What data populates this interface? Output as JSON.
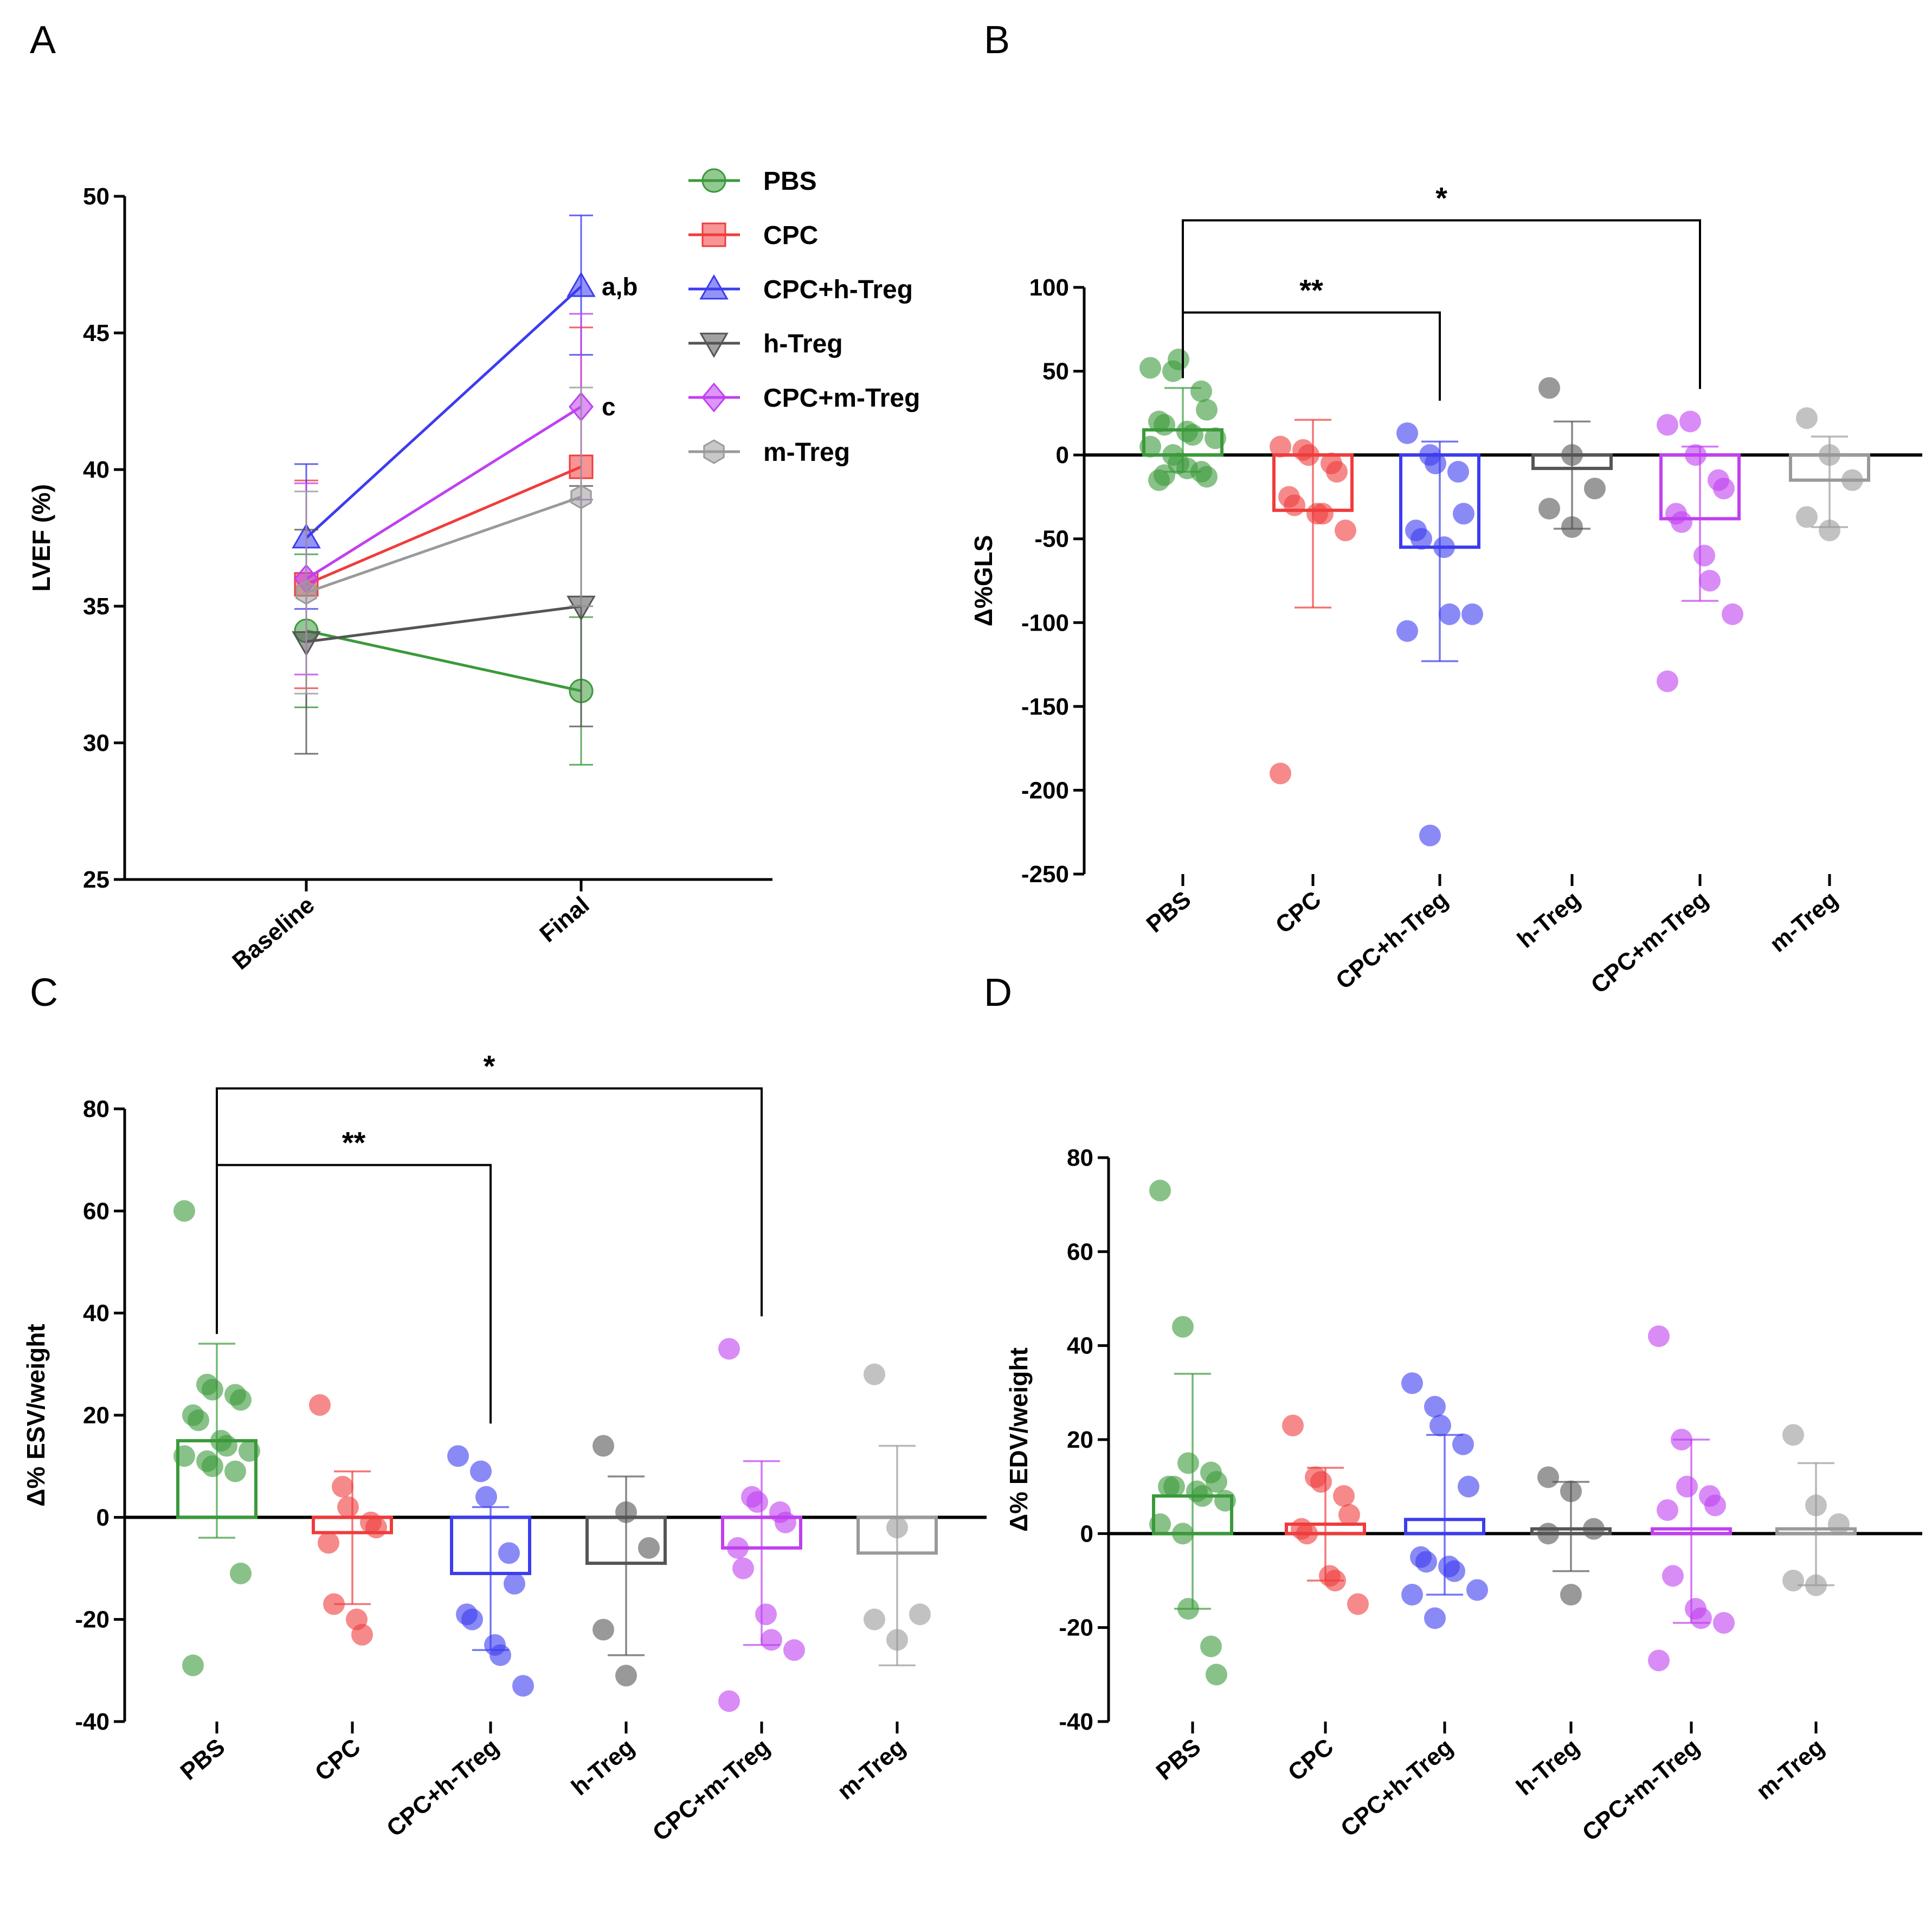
{
  "colors": {
    "PBS": "#3a9a3a",
    "CPC": "#f03c3c",
    "CPC+h-Treg": "#3c3cf0",
    "h-Treg": "#555555",
    "CPC+m-Treg": "#c040f0",
    "m-Treg": "#9a9a9a"
  },
  "chart_data": [
    {
      "panel": "A",
      "type": "line",
      "title": "",
      "xlabel": "",
      "ylabel": "LVEF (%)",
      "categories": [
        "Baseline",
        "Final"
      ],
      "ylim": [
        25,
        50
      ],
      "yticks": [
        25,
        30,
        35,
        40,
        45,
        50
      ],
      "series": [
        {
          "name": "PBS",
          "marker": "circle",
          "values": [
            34.1,
            31.9
          ],
          "err_low": [
            31.3,
            29.2
          ],
          "err_high": [
            36.9,
            34.6
          ]
        },
        {
          "name": "CPC",
          "marker": "square",
          "values": [
            35.8,
            40.1
          ],
          "err_low": [
            32.0,
            35.0
          ],
          "err_high": [
            39.6,
            45.2
          ]
        },
        {
          "name": "CPC+h-Treg",
          "marker": "triangle-up",
          "values": [
            37.5,
            46.7
          ],
          "err_low": [
            34.9,
            44.2
          ],
          "err_high": [
            40.2,
            49.3
          ]
        },
        {
          "name": "h-Treg",
          "marker": "triangle-down",
          "values": [
            33.7,
            35.0
          ],
          "err_low": [
            29.6,
            30.6
          ],
          "err_high": [
            37.8,
            39.4
          ]
        },
        {
          "name": "CPC+m-Treg",
          "marker": "diamond",
          "values": [
            36.0,
            42.3
          ],
          "err_low": [
            32.5,
            38.9
          ],
          "err_high": [
            39.5,
            45.7
          ]
        },
        {
          "name": "m-Treg",
          "marker": "hexagon",
          "values": [
            35.5,
            39.0
          ],
          "err_low": [
            31.8,
            35.0
          ],
          "err_high": [
            39.2,
            43.0
          ]
        }
      ],
      "annotations": [
        {
          "text": "a,b",
          "series": "CPC+h-Treg",
          "category": "Final"
        },
        {
          "text": "c",
          "series": "CPC+m-Treg",
          "category": "Final"
        }
      ],
      "legend": "top-right"
    },
    {
      "panel": "B",
      "type": "bar",
      "title": "",
      "xlabel": "",
      "ylabel": "Δ%GLS",
      "categories": [
        "PBS",
        "CPC",
        "CPC+h-Treg",
        "h-Treg",
        "CPC+m-Treg",
        "m-Treg"
      ],
      "ylim": [
        -250,
        100
      ],
      "yticks": [
        -250,
        -200,
        -150,
        -100,
        -50,
        0,
        50,
        100
      ],
      "groups": [
        {
          "name": "PBS",
          "mean": 15,
          "sd_low": -10,
          "sd_high": 40,
          "points": [
            52,
            50,
            57,
            38,
            27,
            20,
            18,
            14,
            12,
            10,
            5,
            0,
            -5,
            -10,
            -13,
            -15,
            -12,
            -8
          ]
        },
        {
          "name": "CPC",
          "mean": -33,
          "sd_low": -91,
          "sd_high": 21,
          "points": [
            5,
            3,
            0,
            -5,
            -10,
            -25,
            -30,
            -35,
            -35,
            -45,
            -190
          ]
        },
        {
          "name": "CPC+h-Treg",
          "mean": -55,
          "sd_low": -123,
          "sd_high": 8,
          "points": [
            13,
            0,
            -5,
            -10,
            -35,
            -45,
            -50,
            -55,
            -95,
            -95,
            -105,
            -227
          ]
        },
        {
          "name": "h-Treg",
          "mean": -8,
          "sd_low": -44,
          "sd_high": 20,
          "points": [
            40,
            0,
            -20,
            -32,
            -43
          ]
        },
        {
          "name": "CPC+m-Treg",
          "mean": -38,
          "sd_low": -87,
          "sd_high": 5,
          "points": [
            18,
            20,
            0,
            -15,
            -20,
            -35,
            -40,
            -60,
            -75,
            -95,
            -135
          ]
        },
        {
          "name": "m-Treg",
          "mean": -15,
          "sd_low": -43,
          "sd_high": 11,
          "points": [
            22,
            0,
            -15,
            -37,
            -45
          ]
        }
      ],
      "significance": [
        {
          "from": "PBS",
          "to": "CPC+h-Treg",
          "label": "**",
          "level": 85
        },
        {
          "from": "PBS",
          "to": "CPC+m-Treg",
          "label": "*",
          "level": 140
        }
      ]
    },
    {
      "panel": "C",
      "type": "bar",
      "title": "",
      "xlabel": "",
      "ylabel": "Δ% ESV/weight",
      "categories": [
        "PBS",
        "CPC",
        "CPC+h-Treg",
        "h-Treg",
        "CPC+m-Treg",
        "m-Treg"
      ],
      "ylim": [
        -40,
        80
      ],
      "yticks": [
        -40,
        -20,
        0,
        20,
        40,
        60,
        80
      ],
      "groups": [
        {
          "name": "PBS",
          "mean": 15,
          "sd_low": -4,
          "sd_high": 34,
          "points": [
            60,
            26,
            25,
            24,
            23,
            20,
            19,
            15,
            14,
            13,
            12,
            11,
            10,
            9,
            -11,
            -29
          ]
        },
        {
          "name": "CPC",
          "mean": -3,
          "sd_low": -17,
          "sd_high": 9,
          "points": [
            22,
            6,
            2,
            -1,
            -2,
            -5,
            -17,
            -20,
            -23
          ]
        },
        {
          "name": "CPC+h-Treg",
          "mean": -11,
          "sd_low": -26,
          "sd_high": 2,
          "points": [
            12,
            9,
            4,
            -7,
            -13,
            -19,
            -20,
            -25,
            -27,
            -33
          ]
        },
        {
          "name": "h-Treg",
          "mean": -9,
          "sd_low": -27,
          "sd_high": 8,
          "points": [
            14,
            1,
            -6,
            -22,
            -31
          ]
        },
        {
          "name": "CPC+m-Treg",
          "mean": -6,
          "sd_low": -25,
          "sd_high": 11,
          "points": [
            33,
            4,
            3,
            1,
            -1,
            -6,
            -10,
            -19,
            -24,
            -26,
            -36
          ]
        },
        {
          "name": "m-Treg",
          "mean": -7,
          "sd_low": -29,
          "sd_high": 14,
          "points": [
            28,
            -2,
            -19,
            -20,
            -24
          ]
        }
      ],
      "significance": [
        {
          "from": "PBS",
          "to": "CPC+h-Treg",
          "label": "**",
          "level": 69
        },
        {
          "from": "PBS",
          "to": "CPC+m-Treg",
          "label": "*",
          "level": 84
        }
      ]
    },
    {
      "panel": "D",
      "type": "bar",
      "title": "",
      "xlabel": "",
      "ylabel": "Δ% EDV/weight",
      "categories": [
        "PBS",
        "CPC",
        "CPC+h-Treg",
        "h-Treg",
        "CPC+m-Treg",
        "m-Treg"
      ],
      "ylim": [
        -40,
        80
      ],
      "yticks": [
        -40,
        -20,
        0,
        20,
        40,
        60,
        80
      ],
      "groups": [
        {
          "name": "PBS",
          "mean": 8,
          "sd_low": -16,
          "sd_high": 34,
          "points": [
            73,
            44,
            15,
            13,
            11,
            10,
            10,
            9,
            8,
            7,
            2,
            0,
            -16,
            -24,
            -30
          ]
        },
        {
          "name": "CPC",
          "mean": 2,
          "sd_low": -10,
          "sd_high": 14,
          "points": [
            23,
            12,
            11,
            8,
            4,
            1,
            0,
            -9,
            -10,
            -15
          ]
        },
        {
          "name": "CPC+h-Treg",
          "mean": 3,
          "sd_low": -13,
          "sd_high": 21,
          "points": [
            32,
            27,
            23,
            19,
            10,
            -5,
            -6,
            -7,
            -8,
            -12,
            -13,
            -18
          ]
        },
        {
          "name": "h-Treg",
          "mean": 1,
          "sd_low": -8,
          "sd_high": 11,
          "points": [
            12,
            9,
            1,
            0,
            -13
          ]
        },
        {
          "name": "CPC+m-Treg",
          "mean": 1,
          "sd_low": -19,
          "sd_high": 20,
          "points": [
            42,
            20,
            10,
            8,
            6,
            5,
            -9,
            -16,
            -18,
            -19,
            -27
          ]
        },
        {
          "name": "m-Treg",
          "mean": 1,
          "sd_low": -11,
          "sd_high": 15,
          "points": [
            21,
            6,
            2,
            -10,
            -11
          ]
        }
      ],
      "significance": []
    }
  ]
}
